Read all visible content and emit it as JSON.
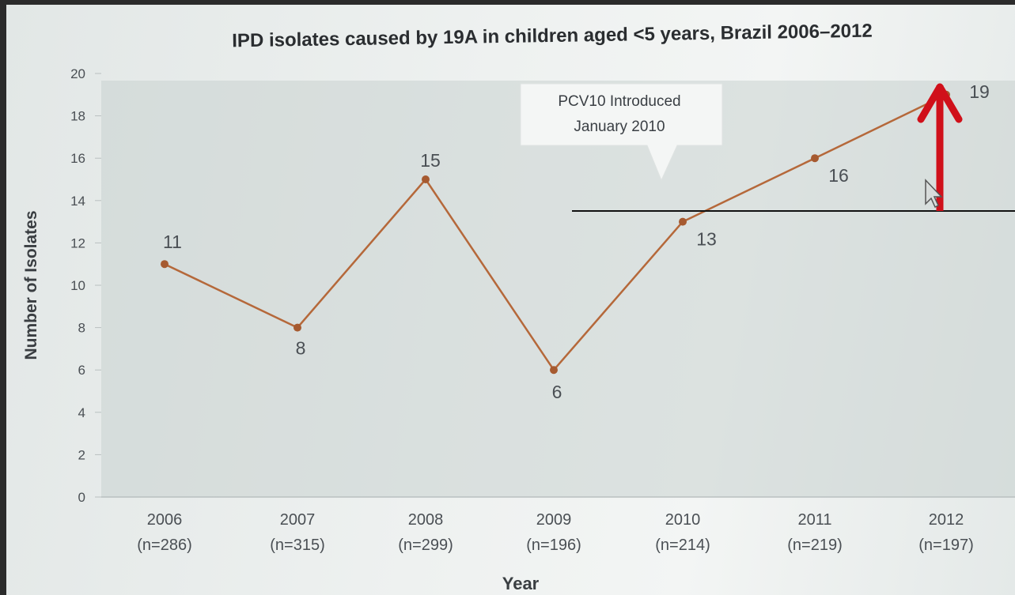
{
  "chart_data": {
    "type": "line",
    "title": "IPD isolates caused by 19A in children aged <5 years, Brazil 2006–2012",
    "xlabel": "Year",
    "ylabel": "Number of Isolates",
    "ylim": [
      0,
      20
    ],
    "yticks": [
      "0",
      "2",
      "4",
      "6",
      "8",
      "10",
      "12",
      "14",
      "16",
      "18",
      "20"
    ],
    "categories": [
      "2006",
      "2007",
      "2008",
      "2009",
      "2010",
      "2011",
      "2012"
    ],
    "category_sub": [
      "(n=286)",
      "(n=315)",
      "(n=299)",
      "(n=196)",
      "(n=214)",
      "(n=219)",
      "(n=197)"
    ],
    "series": [
      {
        "values": [
          11,
          8,
          15,
          6,
          13,
          16,
          19
        ]
      }
    ],
    "data_labels": [
      "11",
      "8",
      "15",
      "6",
      "13",
      "16",
      "19"
    ],
    "annotation": {
      "line1": "PCV10 Introduced",
      "line2": "January 2010",
      "category": "2010"
    },
    "grid": false,
    "line_color": "#b5683a",
    "marker_color": "#a65a30",
    "arrow_color": "#d0101a"
  }
}
